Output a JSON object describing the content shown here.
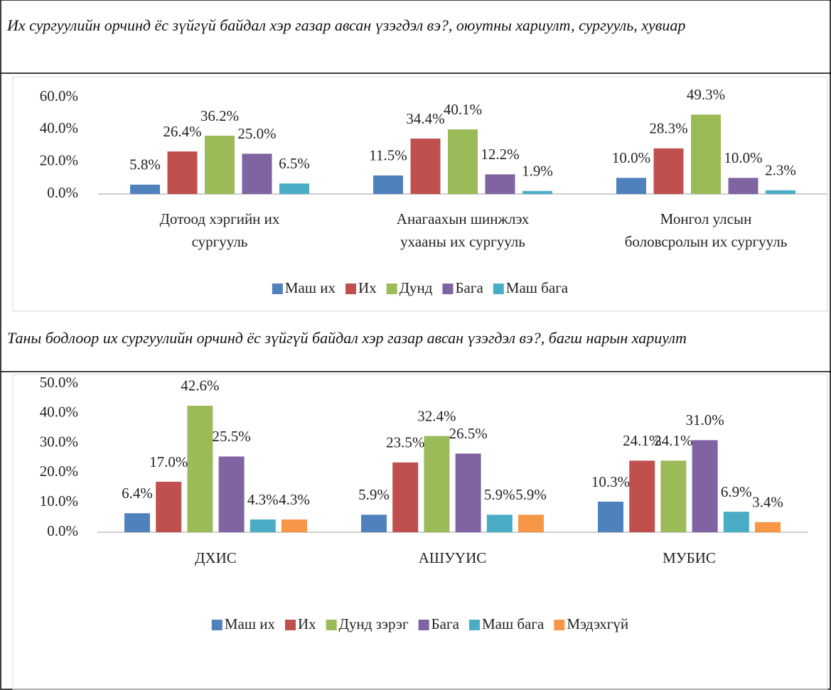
{
  "chart_data": [
    {
      "type": "bar",
      "title": "Их сургуулийн орчинд ёс зүйгүй байдал хэр газар авсан үзэгдэл вэ?, оюутны хариулт, сургууль, хувиар",
      "categories": [
        "Дотоод хэргийн их сургууль",
        "Анагаахын шинжлэх ухааны их сургууль",
        "Монгол улсын боловсролын их сургууль"
      ],
      "series": [
        {
          "name": "Маш их",
          "color": "#4f81bd",
          "values": [
            5.8,
            11.5,
            10.0
          ],
          "value_labels": [
            "5.8%",
            "11.5%",
            "10.0%"
          ]
        },
        {
          "name": "Их",
          "color": "#c0504d",
          "values": [
            26.4,
            34.4,
            28.3
          ],
          "value_labels": [
            "26.4%",
            "34.4%",
            "28.3%"
          ]
        },
        {
          "name": "Дунд",
          "color": "#9bbb59",
          "values": [
            36.2,
            40.1,
            49.3
          ],
          "value_labels": [
            "36.2%",
            "40.1%",
            "49.3%"
          ]
        },
        {
          "name": "Бага",
          "color": "#8064a2",
          "values": [
            25.0,
            12.2,
            10.0
          ],
          "value_labels": [
            "25.0%",
            "12.2%",
            "10.0%"
          ]
        },
        {
          "name": "Маш бага",
          "color": "#4bacc6",
          "values": [
            6.5,
            1.9,
            2.3
          ],
          "value_labels": [
            "6.5%",
            "1.9%",
            "2.3%"
          ]
        }
      ],
      "ylim": [
        0,
        60
      ],
      "yticks": [
        {
          "value": 0,
          "label": "0.0%"
        },
        {
          "value": 20,
          "label": "20.0%"
        },
        {
          "value": 40,
          "label": "40.0%"
        },
        {
          "value": 60,
          "label": "60.0%"
        }
      ],
      "grid": false,
      "legend": "bottom"
    },
    {
      "type": "bar",
      "title": "Таны бодлоор их сургуулийн орчинд ёс зүйгүй байдал хэр газар авсан үзэгдэл вэ?, багш нарын хариулт",
      "categories": [
        "ДХИС",
        "АШУҮИС",
        "МУБИС"
      ],
      "series": [
        {
          "name": "Маш их",
          "color": "#4f81bd",
          "values": [
            6.4,
            5.9,
            10.3
          ],
          "value_labels": [
            "6.4%",
            "5.9%",
            "10.3%"
          ]
        },
        {
          "name": "Их",
          "color": "#c0504d",
          "values": [
            17.0,
            23.5,
            24.1
          ],
          "value_labels": [
            "17.0%",
            "23.5%",
            "24.1%"
          ]
        },
        {
          "name": "Дунд зэрэг",
          "color": "#9bbb59",
          "values": [
            42.6,
            32.4,
            24.1
          ],
          "value_labels": [
            "42.6%",
            "32.4%",
            "24.1%"
          ]
        },
        {
          "name": "Бага",
          "color": "#8064a2",
          "values": [
            25.5,
            26.5,
            31.0
          ],
          "value_labels": [
            "25.5%",
            "26.5%",
            "31.0%"
          ]
        },
        {
          "name": "Маш бага",
          "color": "#4bacc6",
          "values": [
            4.3,
            5.9,
            6.9
          ],
          "value_labels": [
            "4.3%",
            "5.9%",
            "6.9%"
          ]
        },
        {
          "name": "Мэдэхгүй",
          "color": "#f79646",
          "values": [
            4.3,
            5.9,
            3.4
          ],
          "value_labels": [
            "4.3%",
            "5.9%",
            "3.4%"
          ]
        }
      ],
      "ylim": [
        0,
        50
      ],
      "yticks": [
        {
          "value": 0,
          "label": "0.0%"
        },
        {
          "value": 10,
          "label": "10.0%"
        },
        {
          "value": 20,
          "label": "20.0%"
        },
        {
          "value": 30,
          "label": "30.0%"
        },
        {
          "value": 40,
          "label": "40.0%"
        },
        {
          "value": 50,
          "label": "50.0%"
        }
      ],
      "grid": false,
      "legend": "bottom"
    }
  ]
}
